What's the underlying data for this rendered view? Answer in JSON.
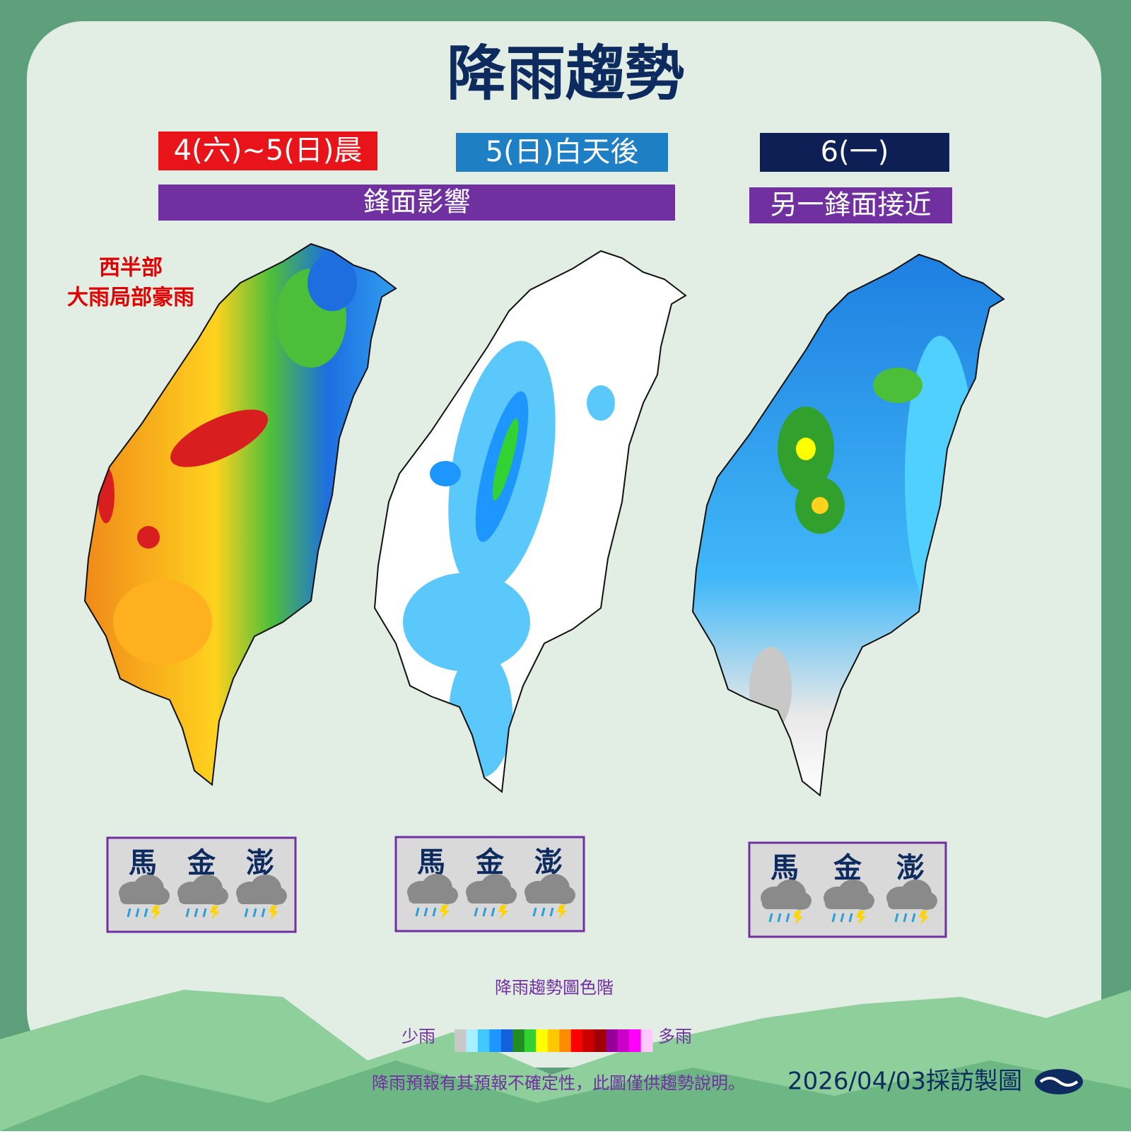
{
  "header": {
    "title": "降雨趨勢"
  },
  "panels": [
    {
      "period": "4(六)~5(日)晨",
      "annotation": [
        "西半部",
        "大雨局部豪雨"
      ],
      "islands": [
        "馬",
        "金",
        "澎"
      ]
    },
    {
      "period": "5(日)白天後",
      "islands": [
        "馬",
        "金",
        "澎"
      ]
    },
    {
      "period": "6(一)",
      "islands": [
        "馬",
        "金",
        "澎"
      ]
    }
  ],
  "banners": [
    "鋒面影響",
    "另一鋒面接近"
  ],
  "legend": {
    "title": "降雨趨勢圖色階",
    "low": "少雨",
    "high": "多雨",
    "colors": [
      "#c8c8c8",
      "#a6f0ff",
      "#40c8ff",
      "#1e96ff",
      "#1460dc",
      "#228b22",
      "#32d232",
      "#ffff00",
      "#ffc800",
      "#ff8c00",
      "#ff0000",
      "#c80000",
      "#a00000",
      "#960096",
      "#c800c8",
      "#ff00ff",
      "#ffc8ff"
    ]
  },
  "footer": {
    "note": "降雨預報有其預報不確定性，此圖僅供趨勢說明。",
    "date": "2026/04/03採訪製圖"
  }
}
